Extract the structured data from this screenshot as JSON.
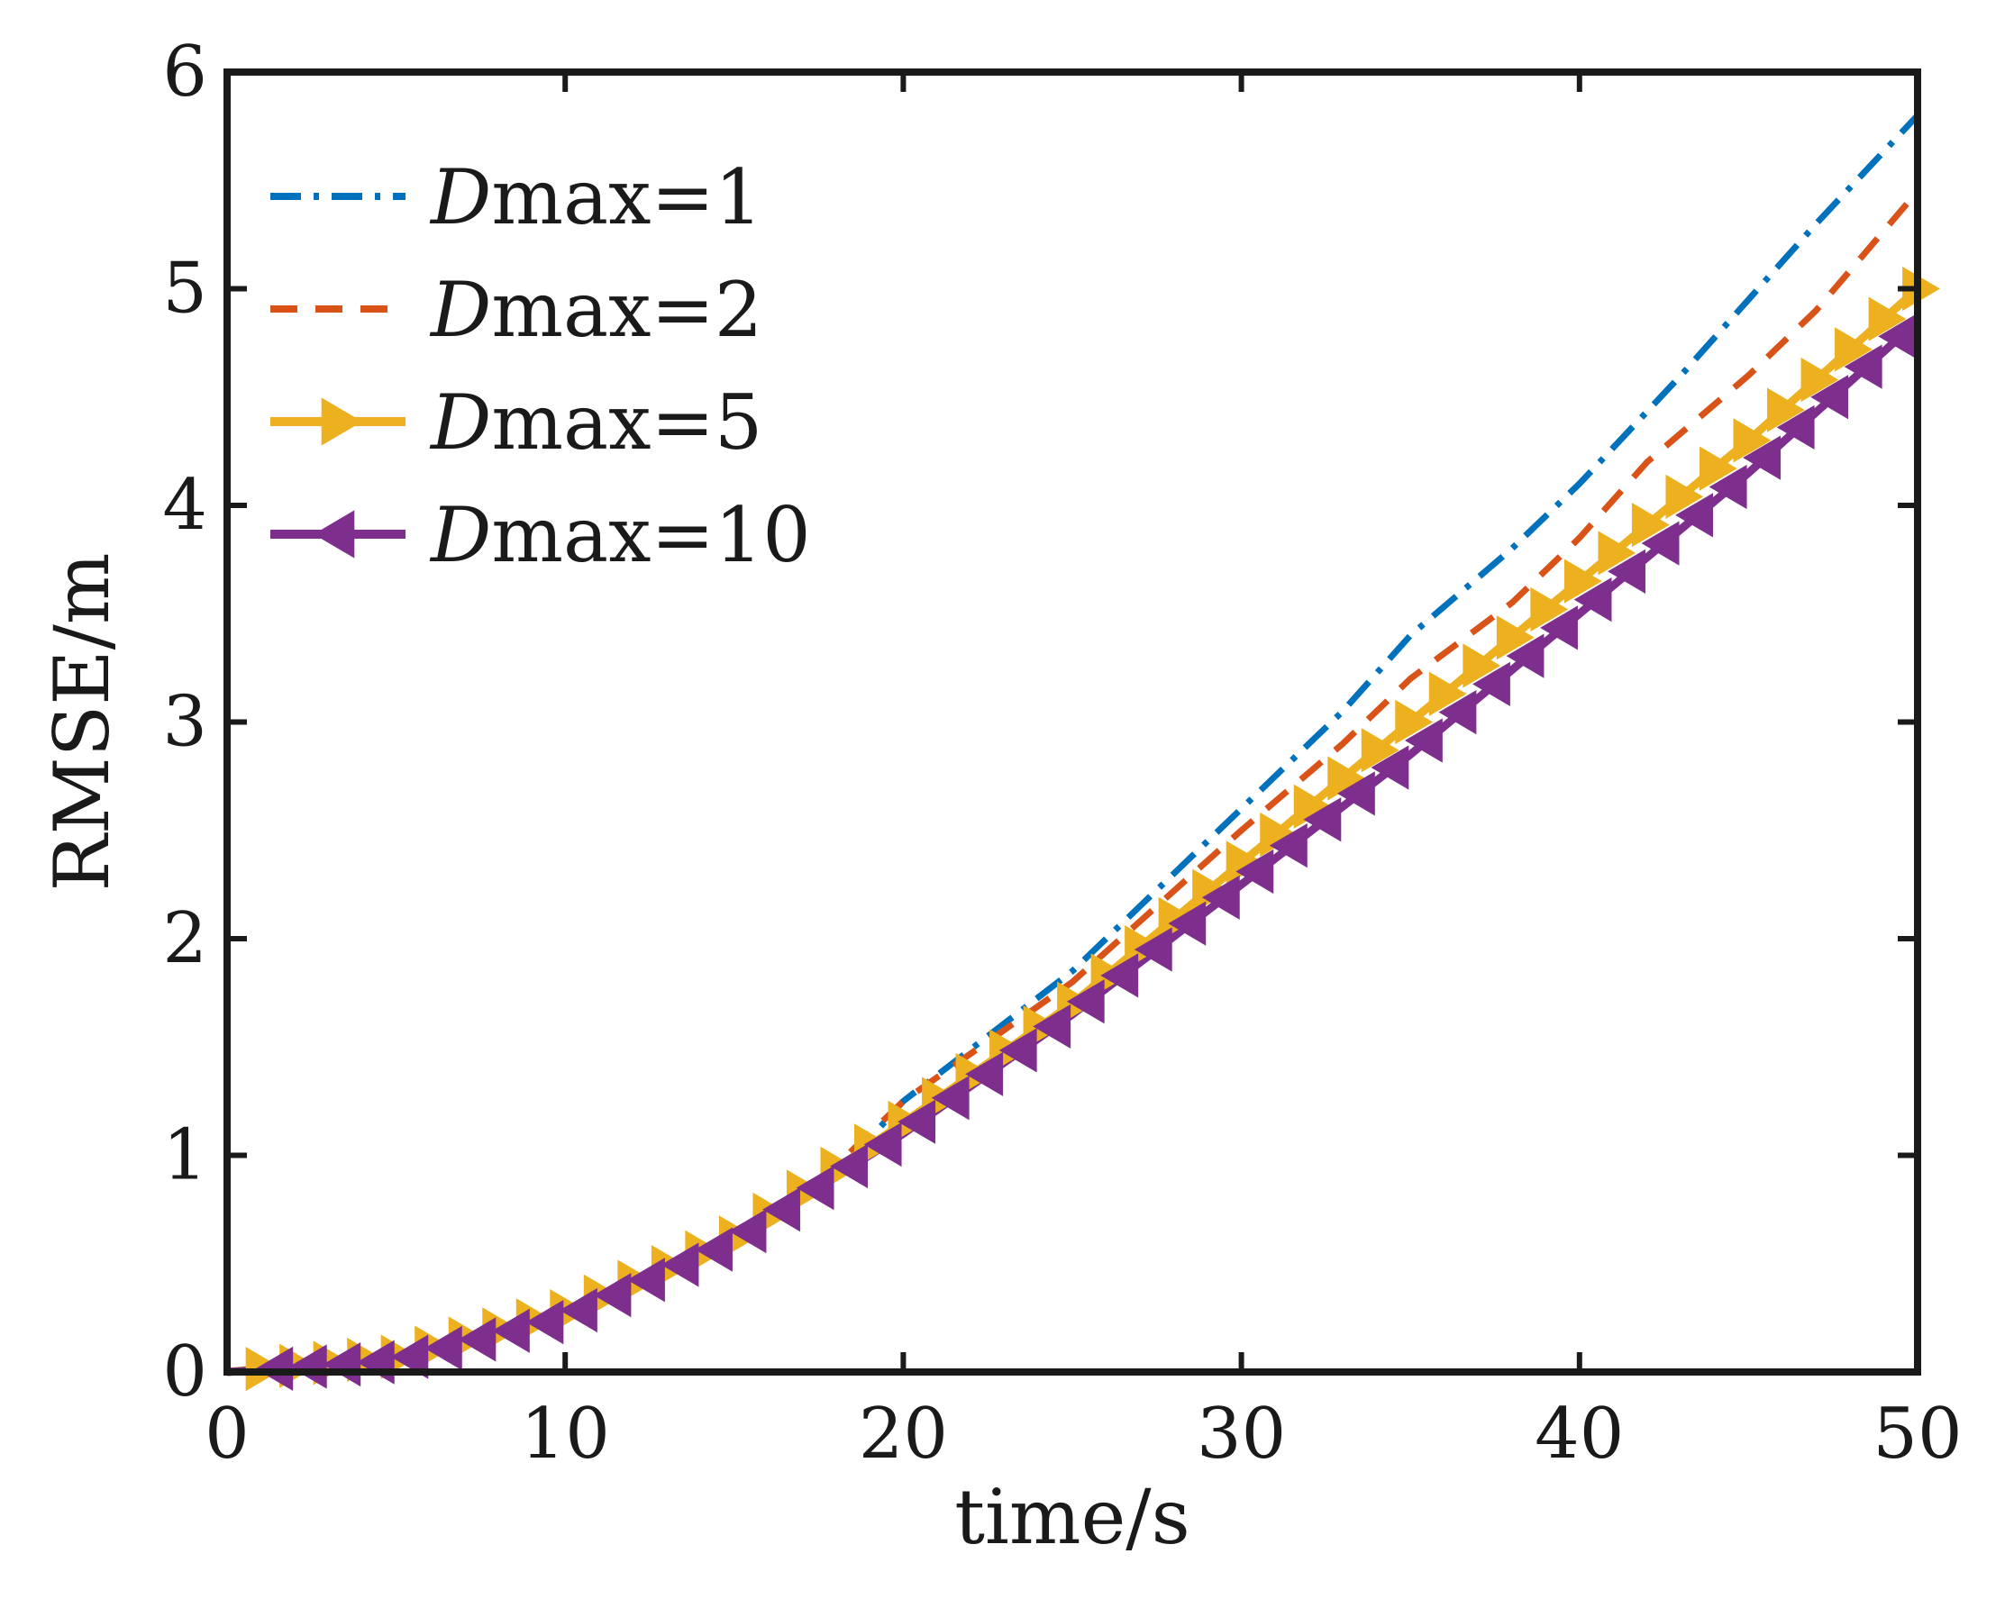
{
  "chart_data": {
    "type": "line",
    "title": "",
    "xlabel": "time/s",
    "ylabel": "RMSE/m",
    "xlim": [
      0,
      50
    ],
    "ylim": [
      0,
      6
    ],
    "xticks": [
      0,
      10,
      20,
      30,
      40,
      50
    ],
    "yticks": [
      0,
      1,
      2,
      3,
      4,
      5,
      6
    ],
    "grid": false,
    "legend_position": "top-left",
    "series": [
      {
        "name": "Dmax=1",
        "legend_italic": "D",
        "legend_rest": "max=1",
        "color": "#0072BD",
        "style": "dash-dot",
        "marker": "none",
        "x": [
          0,
          5,
          10,
          15,
          18,
          20,
          25,
          30,
          33,
          35,
          38,
          40,
          43,
          45,
          47,
          50
        ],
        "y": [
          0.0,
          0.06,
          0.25,
          0.6,
          0.9,
          1.25,
          1.85,
          2.6,
          3.05,
          3.4,
          3.8,
          4.1,
          4.6,
          4.95,
          5.3,
          5.8
        ]
      },
      {
        "name": "Dmax=2",
        "legend_italic": "D",
        "legend_rest": "max=2",
        "color": "#D95319",
        "style": "dashed",
        "marker": "none",
        "x": [
          0,
          5,
          10,
          15,
          18,
          20,
          25,
          30,
          33,
          35,
          38,
          40,
          42,
          45,
          47,
          50
        ],
        "y": [
          0.0,
          0.06,
          0.25,
          0.6,
          0.95,
          1.25,
          1.8,
          2.5,
          2.9,
          3.2,
          3.55,
          3.85,
          4.2,
          4.6,
          4.9,
          5.45
        ]
      },
      {
        "name": "Dmax=5",
        "legend_italic": "D",
        "legend_rest": "max=5",
        "color": "#EDB120",
        "style": "solid",
        "marker": "triangle-right",
        "x": [
          0,
          5,
          10,
          15,
          20,
          25,
          30,
          35,
          40,
          45,
          50
        ],
        "y": [
          0.0,
          0.07,
          0.28,
          0.62,
          1.15,
          1.7,
          2.35,
          3.0,
          3.65,
          4.3,
          5.0
        ]
      },
      {
        "name": "Dmax=10",
        "legend_italic": "D",
        "legend_rest": "max=10",
        "color": "#7E2F8E",
        "style": "solid",
        "marker": "triangle-left",
        "x": [
          0,
          5,
          10,
          15,
          20,
          25,
          30,
          35,
          40,
          45,
          50
        ],
        "y": [
          0.0,
          0.05,
          0.25,
          0.6,
          1.1,
          1.65,
          2.25,
          2.85,
          3.5,
          4.15,
          4.85
        ]
      }
    ]
  }
}
